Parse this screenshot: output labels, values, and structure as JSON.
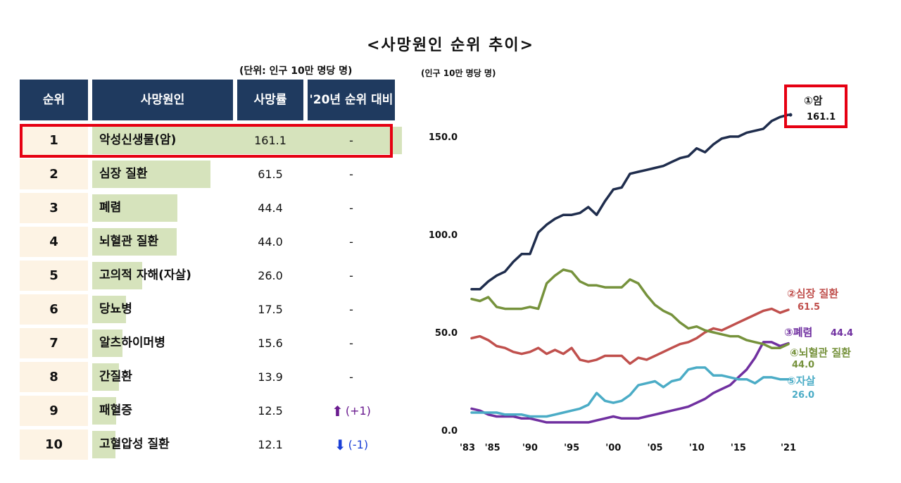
{
  "title": "<사망원인 순위 추이>",
  "table": {
    "unit": "(단위: 인구 10만 명당 명)",
    "headers": [
      "순위",
      "사망원인",
      "사망률",
      "'20년 순위 대비"
    ],
    "max_rate": 161.1,
    "rows": [
      {
        "rank": "1",
        "cause": "악성신생물(암)",
        "rate": "161.1",
        "rate_value": 161.1,
        "change": "-",
        "direction": "none"
      },
      {
        "rank": "2",
        "cause": "심장 질환",
        "rate": "61.5",
        "rate_value": 61.5,
        "change": "-",
        "direction": "none"
      },
      {
        "rank": "3",
        "cause": "폐렴",
        "rate": "44.4",
        "rate_value": 44.4,
        "change": "-",
        "direction": "none"
      },
      {
        "rank": "4",
        "cause": "뇌혈관 질환",
        "rate": "44.0",
        "rate_value": 44.0,
        "change": "-",
        "direction": "none"
      },
      {
        "rank": "5",
        "cause": "고의적 자해(자살)",
        "rate": "26.0",
        "rate_value": 26.0,
        "change": "-",
        "direction": "none"
      },
      {
        "rank": "6",
        "cause": "당뇨병",
        "rate": "17.5",
        "rate_value": 17.5,
        "change": "-",
        "direction": "none"
      },
      {
        "rank": "7",
        "cause": "알츠하이머병",
        "rate": "15.6",
        "rate_value": 15.6,
        "change": "-",
        "direction": "none"
      },
      {
        "rank": "8",
        "cause": "간질환",
        "rate": "13.9",
        "rate_value": 13.9,
        "change": "-",
        "direction": "none"
      },
      {
        "rank": "9",
        "cause": "패혈증",
        "rate": "12.5",
        "rate_value": 12.5,
        "change": "(+1)",
        "direction": "up"
      },
      {
        "rank": "10",
        "cause": "고혈압성 질환",
        "rate": "12.1",
        "rate_value": 12.1,
        "change": "(-1)",
        "direction": "down"
      }
    ]
  },
  "colors": {
    "header_bg": "#1f3a5f",
    "bar": "#d6e3bc",
    "highlight": "#e60012"
  },
  "chart_data": {
    "type": "line",
    "ylabel": "(인구 10만 명당 명)",
    "ylim": [
      0,
      170
    ],
    "yticks": [
      0,
      50,
      100,
      150
    ],
    "ytick_labels": [
      "0.0",
      "50.0",
      "100.0",
      "150.0"
    ],
    "xlim": [
      1983,
      2021
    ],
    "xticks": [
      1983,
      1985,
      1990,
      1995,
      2000,
      2005,
      2010,
      2015,
      2021
    ],
    "xtick_labels": [
      "'83",
      "'85",
      "'90",
      "'95",
      "'00",
      "'05",
      "'10",
      "'15",
      "'21"
    ],
    "x": [
      1983,
      1984,
      1985,
      1986,
      1987,
      1988,
      1989,
      1990,
      1991,
      1992,
      1993,
      1994,
      1995,
      1996,
      1997,
      1998,
      1999,
      2000,
      2001,
      2002,
      2003,
      2004,
      2005,
      2006,
      2007,
      2008,
      2009,
      2010,
      2011,
      2012,
      2013,
      2014,
      2015,
      2016,
      2017,
      2018,
      2019,
      2020,
      2021
    ],
    "series": [
      {
        "name": "암",
        "label_prefix": "①",
        "final_label": "161.1",
        "color": "#1f2d4d",
        "values": [
          72,
          72,
          76,
          79,
          81,
          86,
          90,
          90,
          101,
          105,
          108,
          110,
          110,
          111,
          114,
          110,
          117,
          123,
          124,
          131,
          132,
          133,
          134,
          135,
          137,
          139,
          140,
          144,
          142,
          146,
          149,
          150,
          150,
          152,
          153,
          154,
          158,
          160,
          161.1
        ]
      },
      {
        "name": "심장 질환",
        "label_prefix": "②",
        "final_label": "61.5",
        "color": "#c0504d",
        "values": [
          47,
          48,
          46,
          43,
          42,
          40,
          39,
          40,
          42,
          39,
          41,
          39,
          42,
          36,
          35,
          36,
          38,
          38,
          38,
          34,
          37,
          36,
          38,
          40,
          42,
          44,
          45,
          47,
          50,
          52,
          51,
          53,
          55,
          57,
          59,
          61,
          62,
          60,
          61.5
        ]
      },
      {
        "name": "폐렴",
        "label_prefix": "③",
        "final_label": "44.4",
        "color": "#7030a0",
        "values": [
          11,
          10,
          8,
          7,
          7,
          7,
          6,
          6,
          5,
          4,
          4,
          4,
          4,
          4,
          4,
          5,
          6,
          7,
          6,
          6,
          6,
          7,
          8,
          9,
          10,
          11,
          12,
          14,
          16,
          19,
          21,
          23,
          27,
          31,
          37,
          45,
          45,
          43,
          44.4
        ]
      },
      {
        "name": "뇌혈관 질환",
        "label_prefix": "④",
        "final_label": "44.0",
        "color": "#76923c",
        "values": [
          67,
          66,
          68,
          63,
          62,
          62,
          62,
          63,
          62,
          75,
          79,
          82,
          81,
          76,
          74,
          74,
          73,
          73,
          73,
          77,
          75,
          69,
          64,
          61,
          59,
          55,
          52,
          53,
          51,
          50,
          49,
          48,
          48,
          46,
          45,
          44,
          42,
          42,
          44.0
        ]
      },
      {
        "name": "자살",
        "label_prefix": "⑤",
        "final_label": "26.0",
        "color": "#4bacc6",
        "values": [
          9,
          9,
          9,
          9,
          8,
          8,
          8,
          7,
          7,
          7,
          8,
          9,
          10,
          11,
          13,
          19,
          15,
          14,
          15,
          18,
          23,
          24,
          25,
          22,
          25,
          26,
          31,
          32,
          32,
          28,
          28,
          27,
          26,
          26,
          24,
          27,
          27,
          26,
          26.0
        ]
      }
    ]
  }
}
